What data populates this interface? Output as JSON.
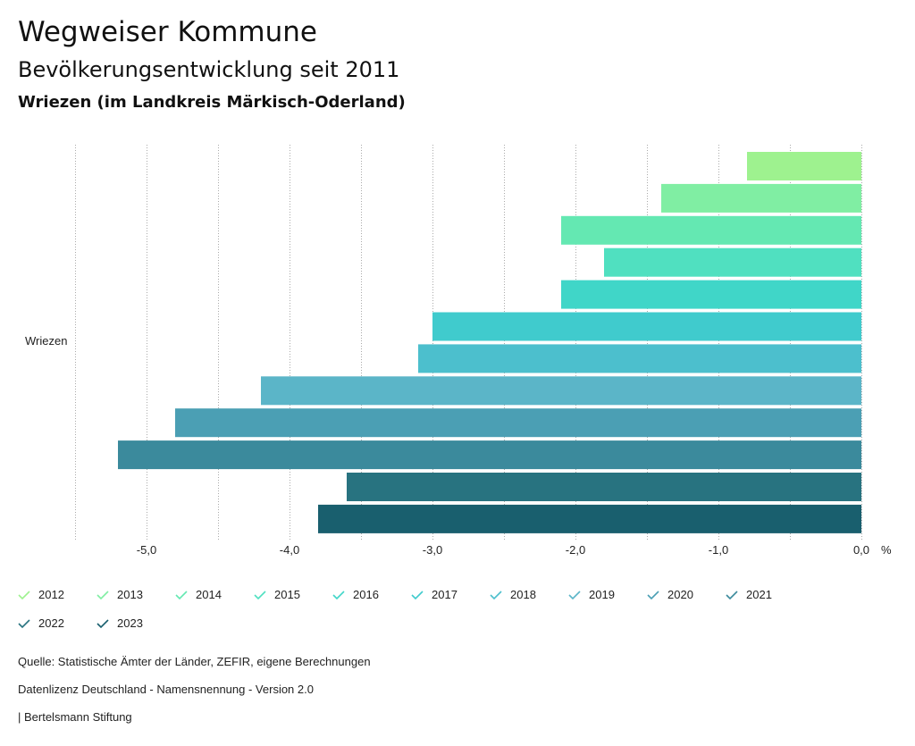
{
  "header": {
    "title": "Wegweiser Kommune",
    "subtitle": "Bevölkerungsentwicklung seit 2011",
    "region": "Wriezen (im Landkreis Märkisch-Oderland)"
  },
  "chart_data": {
    "type": "bar",
    "orientation": "horizontal",
    "categories": [
      "Wriezen"
    ],
    "unit": "%",
    "xlim": [
      -5.5,
      0
    ],
    "ticks": [
      -5.0,
      -4.0,
      -3.0,
      -2.0,
      -1.0,
      0.0
    ],
    "tick_labels": [
      "-5,0",
      "-4,0",
      "-3,0",
      "-2,0",
      "-1,0",
      "0,0"
    ],
    "grid": "vertical dotted",
    "series": [
      {
        "name": "2012",
        "values": [
          -0.8
        ],
        "color": "#9ef28f"
      },
      {
        "name": "2013",
        "values": [
          -1.4
        ],
        "color": "#80eea3"
      },
      {
        "name": "2014",
        "values": [
          -2.1
        ],
        "color": "#64e8b2"
      },
      {
        "name": "2015",
        "values": [
          -1.8
        ],
        "color": "#50e0c0"
      },
      {
        "name": "2016",
        "values": [
          -2.1
        ],
        "color": "#40d6c8"
      },
      {
        "name": "2017",
        "values": [
          -3.0
        ],
        "color": "#40cbcd"
      },
      {
        "name": "2018",
        "values": [
          -3.1
        ],
        "color": "#4cbfcd"
      },
      {
        "name": "2019",
        "values": [
          -4.2
        ],
        "color": "#5bb5c8"
      },
      {
        "name": "2020",
        "values": [
          -4.8
        ],
        "color": "#4b9fb4"
      },
      {
        "name": "2021",
        "values": [
          -5.2
        ],
        "color": "#3b8a9c"
      },
      {
        "name": "2022",
        "values": [
          -3.6
        ],
        "color": "#287380"
      },
      {
        "name": "2023",
        "values": [
          -3.8
        ],
        "color": "#195f6e"
      }
    ]
  },
  "footer": {
    "source": "Quelle: Statistische Ämter der Länder, ZEFIR, eigene Berechnungen",
    "license": "Datenlizenz Deutschland - Namensnennung - Version 2.0",
    "publisher": "| Bertelsmann Stiftung"
  }
}
